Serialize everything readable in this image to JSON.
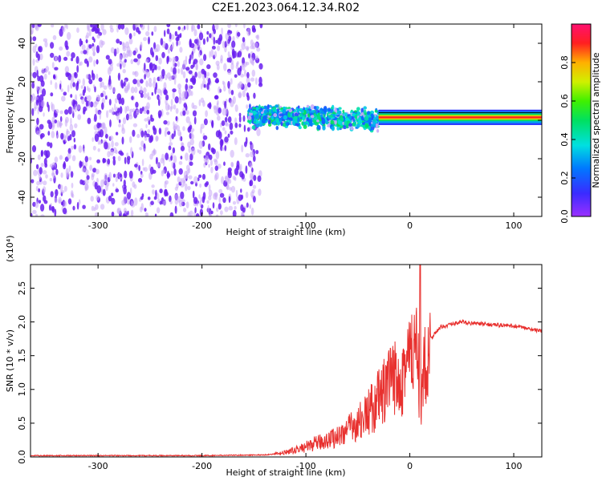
{
  "title": "C2E1.2023.064.12.34.R02",
  "colors": {
    "snr_line": "#e8302e",
    "scatter_dark": "#6a1ef0",
    "scatter_light": "#c8a8f8"
  },
  "chart_data": [
    {
      "type": "heatmap",
      "xlabel": "Height of straight line (km)",
      "ylabel": "Frequency (Hz)",
      "xlim": [
        -365,
        127
      ],
      "ylim": [
        -50,
        50
      ],
      "x_ticks": [
        -300,
        -200,
        -100,
        0,
        100
      ],
      "y_ticks": [
        -40,
        -20,
        0,
        20,
        40
      ],
      "colorbar": {
        "label": "Normalized spectral amplitude",
        "range": [
          0,
          1
        ],
        "ticks": [
          "0.0",
          "0.2",
          "0.4",
          "0.6",
          "0.8"
        ],
        "tick_values": [
          0.0,
          0.2,
          0.4,
          0.6,
          0.8
        ]
      },
      "regions": [
        {
          "x_range": [
            -365,
            -143
          ],
          "freq_range": [
            -50,
            50
          ],
          "amplitude": 0.1
        },
        {
          "x_range": [
            -155,
            -30
          ],
          "freq_center": 3,
          "freq_spread": 12,
          "amplitude": 0.35
        },
        {
          "x_range": [
            -30,
            127
          ],
          "freq_center": 1.5,
          "freq_spread": 2,
          "amplitude": 0.9
        }
      ]
    },
    {
      "type": "line",
      "xlabel": "Height of straight line (km)",
      "ylabel": "SNR (10 * v/v)",
      "y_multiplier": "(x10⁴)",
      "xlim": [
        -365,
        127
      ],
      "ylim": [
        0,
        2.85
      ],
      "x_ticks": [
        -300,
        -200,
        -100,
        0,
        100
      ],
      "y_ticks": [
        "0.0",
        "0.5",
        "1.0",
        "1.5",
        "2.0",
        "2.5"
      ],
      "y_tick_values": [
        0.0,
        0.5,
        1.0,
        1.5,
        2.0,
        2.5
      ],
      "series": [
        {
          "x": [
            -365,
            -300,
            -200,
            -140,
            -125,
            -110,
            -100,
            -90,
            -80,
            -70,
            -60,
            -50,
            -40,
            -30,
            -20,
            -15,
            -10,
            -5,
            0,
            5,
            10,
            12,
            15,
            20,
            25,
            30,
            40,
            50,
            60,
            70,
            80,
            90,
            100,
            110,
            120,
            127
          ],
          "y": [
            0.02,
            0.02,
            0.02,
            0.03,
            0.05,
            0.1,
            0.15,
            0.2,
            0.25,
            0.3,
            0.4,
            0.5,
            0.65,
            0.85,
            1.05,
            1.15,
            1.25,
            1.35,
            1.45,
            1.55,
            1.2,
            0.8,
            1.5,
            1.75,
            1.85,
            1.92,
            1.97,
            2.0,
            1.98,
            1.97,
            1.96,
            1.95,
            1.94,
            1.91,
            1.88,
            1.87
          ]
        }
      ]
    }
  ]
}
